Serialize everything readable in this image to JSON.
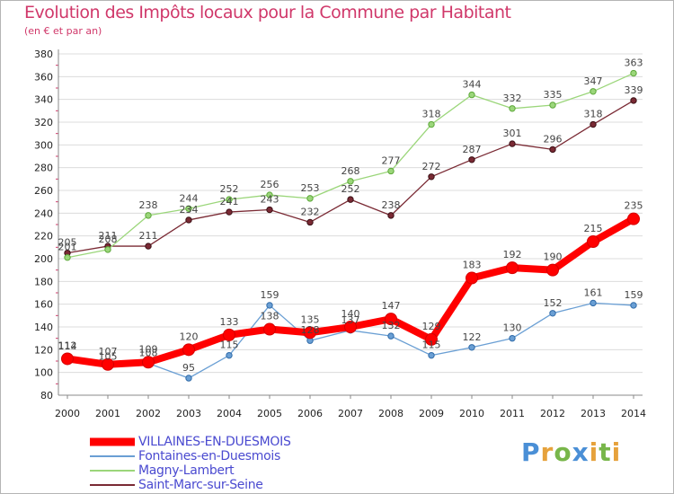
{
  "header": {
    "title": "Evolution des Impôts locaux pour la Commune par Habitant",
    "subtitle": "(en € et par an)"
  },
  "logo": {
    "text": "Proxiti",
    "letters": [
      "P",
      "r",
      "o",
      "x",
      "i",
      "t",
      "i"
    ]
  },
  "chart_data": {
    "type": "line",
    "x": [
      2000,
      2001,
      2002,
      2003,
      2004,
      2005,
      2006,
      2007,
      2008,
      2009,
      2010,
      2011,
      2012,
      2013,
      2014
    ],
    "x_ticks": [
      "2000",
      "2001",
      "2002",
      "2003",
      "2004",
      "2005",
      "2006",
      "2007",
      "2008",
      "2009",
      "2010",
      "2011",
      "2012",
      "2013",
      "2014"
    ],
    "ylim": [
      80,
      380
    ],
    "y_ticks": [
      "80",
      "100",
      "120",
      "140",
      "160",
      "180",
      "200",
      "220",
      "240",
      "260",
      "280",
      "300",
      "320",
      "340",
      "360",
      "380"
    ],
    "grid": "horizontal",
    "legend_position": "bottom-left",
    "series": [
      {
        "name": "VILLAINES-EN-DUESMOIS",
        "color": "#ff0000",
        "emphasis": true,
        "values": [
          112,
          107,
          109,
          120,
          133,
          138,
          135,
          140,
          147,
          129,
          183,
          192,
          190,
          215,
          235
        ],
        "labels": [
          "112",
          "107",
          "109",
          "120",
          "133",
          "138",
          "135",
          "140",
          "147",
          "129",
          "183",
          "192",
          "190",
          "215",
          "235"
        ]
      },
      {
        "name": "Fontaines-en-Duesmois",
        "color": "#6a9fd4",
        "values": [
          114,
          105,
          108,
          95,
          115,
          159,
          128,
          137,
          132,
          115,
          122,
          130,
          152,
          161,
          159
        ],
        "labels": [
          "114",
          "105",
          "108",
          "95",
          "115",
          "159",
          "128",
          "137",
          "132",
          "115",
          "122",
          "130",
          "152",
          "161",
          "159"
        ]
      },
      {
        "name": "Magny-Lambert",
        "color": "#9bd67a",
        "values": [
          201,
          208,
          238,
          244,
          252,
          256,
          253,
          268,
          277,
          318,
          344,
          332,
          335,
          347,
          363
        ],
        "labels": [
          "201",
          "208",
          "238",
          "244",
          "252",
          "256",
          "253",
          "268",
          "277",
          "318",
          "344",
          "332",
          "335",
          "347",
          "363"
        ]
      },
      {
        "name": "Saint-Marc-sur-Seine",
        "color": "#7a2a34",
        "values": [
          205,
          211,
          211,
          234,
          241,
          243,
          232,
          252,
          238,
          272,
          287,
          301,
          296,
          318,
          339
        ],
        "labels": [
          "205",
          "211",
          "211",
          "234",
          "241",
          "243",
          "232",
          "252",
          "238",
          "272",
          "287",
          "301",
          "296",
          "318",
          "339"
        ]
      }
    ]
  }
}
